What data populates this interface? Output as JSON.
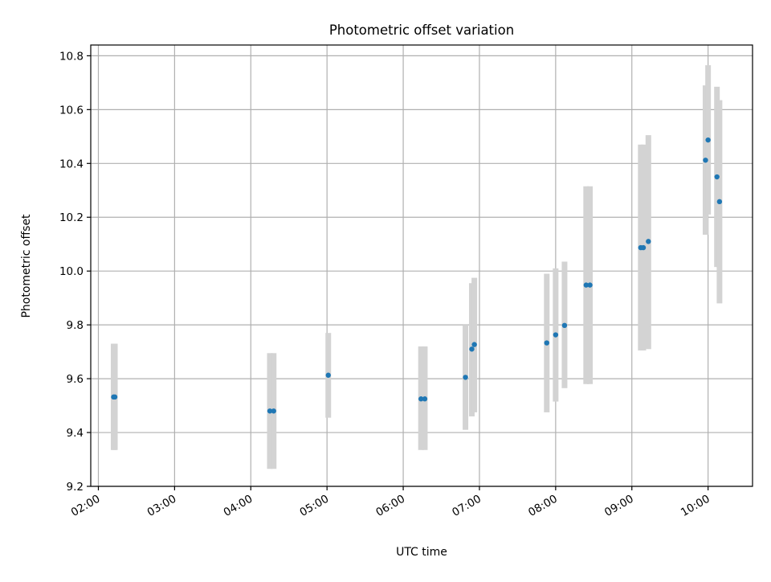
{
  "chart_data": {
    "type": "scatter",
    "title": "Photometric offset variation",
    "xlabel": "UTC time",
    "ylabel": "Photometric offset",
    "x_ticks": [
      "02:00",
      "03:00",
      "04:00",
      "05:00",
      "06:00",
      "07:00",
      "08:00",
      "09:00",
      "10:00"
    ],
    "y_ticks": [
      "9.2",
      "9.4",
      "9.6",
      "9.8",
      "10.0",
      "10.2",
      "10.4",
      "10.6",
      "10.8"
    ],
    "xlim": [
      "01:54",
      "10:35"
    ],
    "ylim": [
      9.2,
      10.84
    ],
    "grid": true,
    "colors": {
      "point": "#1f77b4",
      "errorbar": "#d3d3d3",
      "grid": "#b0b0b0"
    },
    "points": [
      {
        "time": "02:12",
        "value": 9.532,
        "low": 9.335,
        "high": 9.73
      },
      {
        "time": "02:13",
        "value": 9.532,
        "low": 9.335,
        "high": 9.73
      },
      {
        "time": "04:15",
        "value": 9.48,
        "low": 9.265,
        "high": 9.695
      },
      {
        "time": "04:18",
        "value": 9.48,
        "low": 9.265,
        "high": 9.695
      },
      {
        "time": "05:01",
        "value": 9.613,
        "low": 9.455,
        "high": 9.77
      },
      {
        "time": "06:14",
        "value": 9.525,
        "low": 9.335,
        "high": 9.72
      },
      {
        "time": "06:17",
        "value": 9.525,
        "low": 9.335,
        "high": 9.72
      },
      {
        "time": "06:49",
        "value": 9.605,
        "low": 9.41,
        "high": 9.8
      },
      {
        "time": "06:54",
        "value": 9.71,
        "low": 9.46,
        "high": 9.955
      },
      {
        "time": "06:56",
        "value": 9.727,
        "low": 9.475,
        "high": 9.975
      },
      {
        "time": "07:53",
        "value": 9.733,
        "low": 9.475,
        "high": 9.99
      },
      {
        "time": "08:00",
        "value": 9.763,
        "low": 9.515,
        "high": 10.01
      },
      {
        "time": "08:07",
        "value": 9.798,
        "low": 9.565,
        "high": 10.035
      },
      {
        "time": "08:24",
        "value": 9.948,
        "low": 9.58,
        "high": 10.315
      },
      {
        "time": "08:27",
        "value": 9.948,
        "low": 9.58,
        "high": 10.315
      },
      {
        "time": "09:07",
        "value": 10.087,
        "low": 9.705,
        "high": 10.47
      },
      {
        "time": "09:09",
        "value": 10.087,
        "low": 9.705,
        "high": 10.47
      },
      {
        "time": "09:13",
        "value": 10.11,
        "low": 9.71,
        "high": 10.505
      },
      {
        "time": "09:58",
        "value": 10.412,
        "low": 10.135,
        "high": 10.69
      },
      {
        "time": "10:00",
        "value": 10.487,
        "low": 10.21,
        "high": 10.765
      },
      {
        "time": "10:07",
        "value": 10.35,
        "low": 10.015,
        "high": 10.685
      },
      {
        "time": "10:09",
        "value": 10.258,
        "low": 9.88,
        "high": 10.635
      }
    ]
  }
}
